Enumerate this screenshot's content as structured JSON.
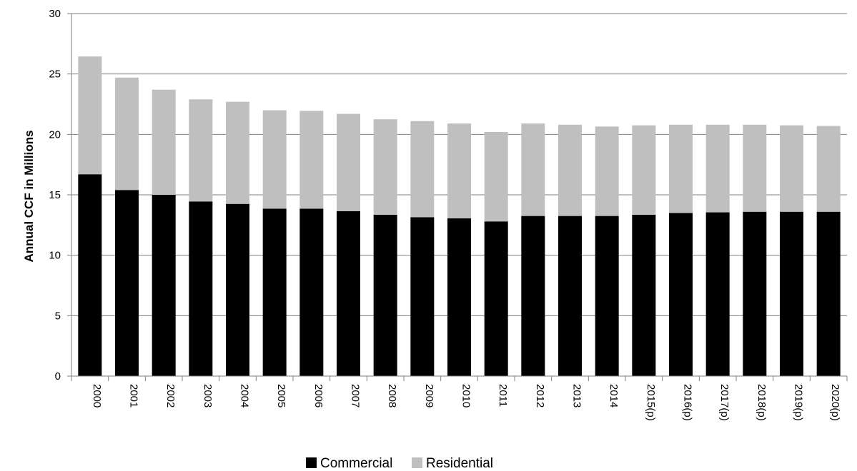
{
  "chart_data": {
    "type": "bar",
    "stacked": true,
    "title": "",
    "xlabel": "",
    "ylabel": "Annual CCF in Millions",
    "ylim": [
      0,
      30
    ],
    "yticks": [
      "0",
      "5",
      "10",
      "15",
      "20",
      "25",
      "30"
    ],
    "grid": "horizontal",
    "legend_position": "bottom",
    "categories": [
      "2000",
      "2001",
      "2002",
      "2003",
      "2004",
      "2005",
      "2006",
      "2007",
      "2008",
      "2009",
      "2010",
      "2011",
      "2012",
      "2013",
      "2014",
      "2015(p)",
      "2016(p)",
      "2017(p)",
      "2018(p)",
      "2019(p)",
      "2020(p)"
    ],
    "series": [
      {
        "name": "Commercial",
        "color": "#000000",
        "values": [
          16.7,
          15.4,
          15.0,
          14.45,
          14.25,
          13.85,
          13.85,
          13.65,
          13.35,
          13.15,
          13.05,
          12.8,
          13.25,
          13.25,
          13.25,
          13.35,
          13.5,
          13.55,
          13.6,
          13.6,
          13.6
        ]
      },
      {
        "name": "Residential",
        "color": "#bfbfbf",
        "values": [
          9.75,
          9.3,
          8.7,
          8.45,
          8.45,
          8.15,
          8.1,
          8.05,
          7.9,
          7.95,
          7.85,
          7.4,
          7.65,
          7.55,
          7.4,
          7.4,
          7.3,
          7.25,
          7.2,
          7.15,
          7.1
        ]
      }
    ]
  }
}
